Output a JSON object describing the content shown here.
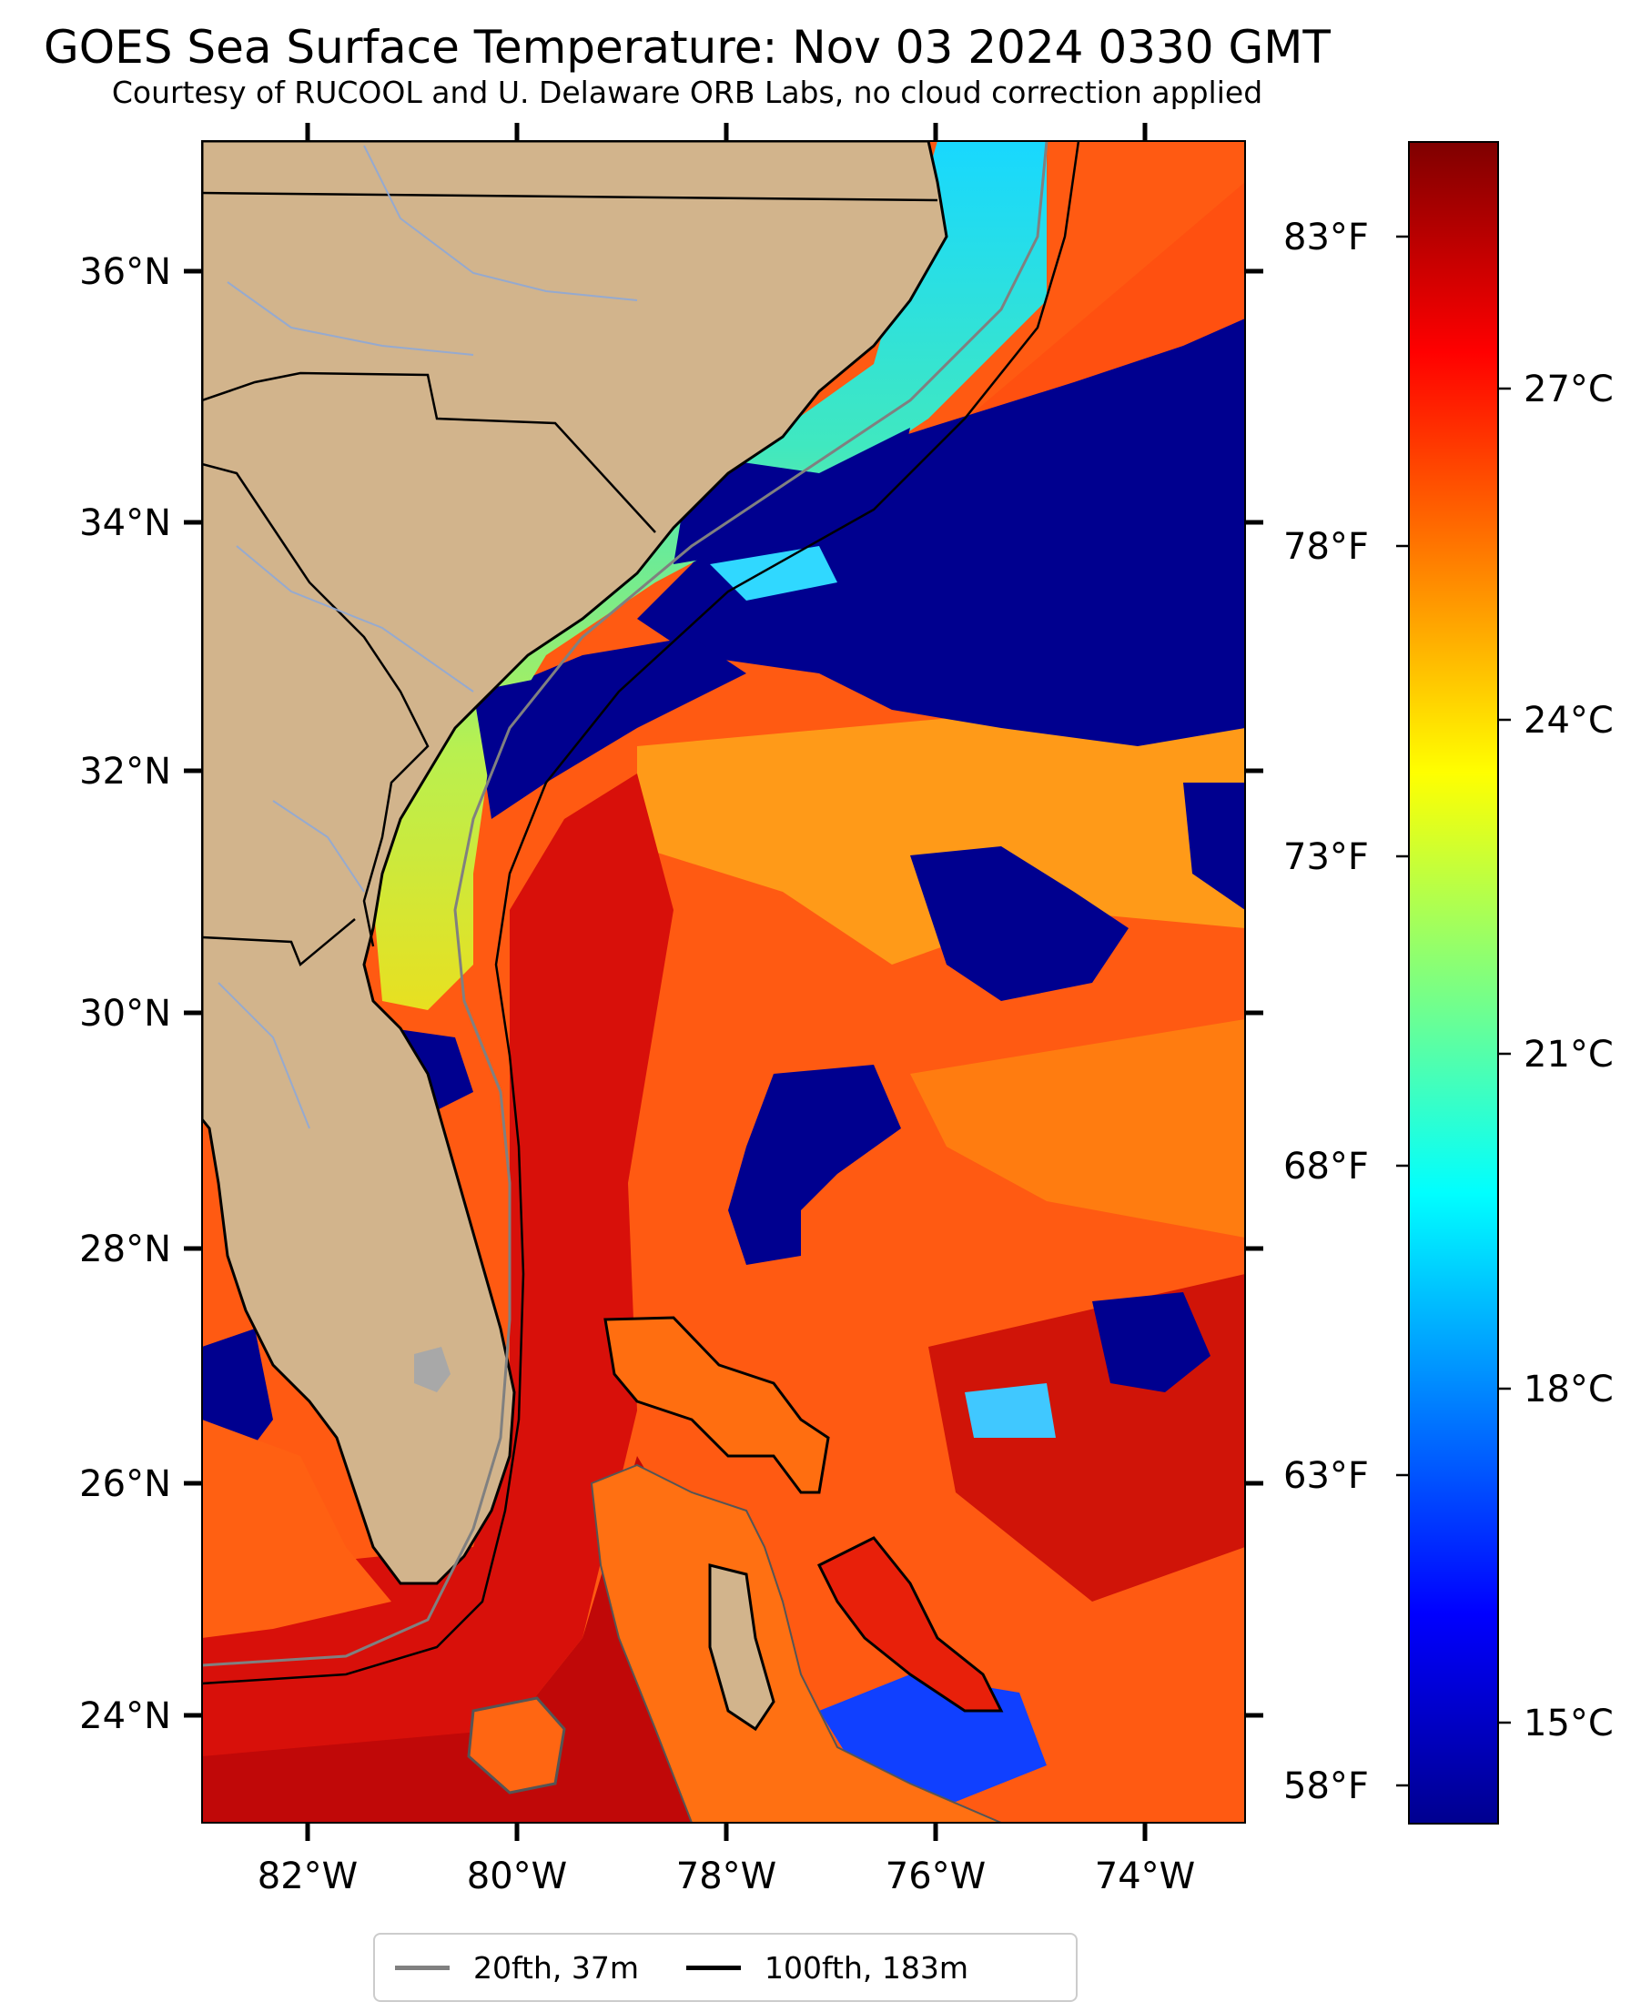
{
  "header": {
    "title": "GOES Sea Surface Temperature: Nov 03 2024 0330 GMT",
    "subtitle": "Courtesy of RUCOOL and U. Delaware ORB Labs, no cloud correction applied"
  },
  "map": {
    "extent": {
      "lon": [
        -83,
        -73
      ],
      "lat": [
        23.1,
        37.0
      ]
    },
    "lat_tick_labels": [
      "36°N",
      "34°N",
      "32°N",
      "30°N",
      "28°N",
      "26°N",
      "24°N"
    ],
    "lon_tick_labels": [
      "82°W",
      "80°W",
      "78°W",
      "76°W",
      "74°W"
    ],
    "fahrenheit_labels": [
      "83°F",
      "78°F",
      "73°F",
      "68°F",
      "63°F",
      "58°F"
    ],
    "colors": {
      "land": "#d2b48c",
      "gulf_stream": "#e41a0c",
      "warm_sargasso": "#ff5a12",
      "cloud_cold": "#00008f",
      "shelf_water": "#a8f060",
      "coastline": "#000000",
      "rivers": "#8fa8d6"
    }
  },
  "colorbar": {
    "celsius_labels": [
      "27°C",
      "24°C",
      "21°C",
      "18°C",
      "15°C"
    ],
    "colormap": "jet",
    "range_c": [
      13.6,
      29.2
    ]
  },
  "legend": {
    "items": [
      {
        "label": "20fth, 37m",
        "color": "#808080"
      },
      {
        "label": "100fth, 183m",
        "color": "#000000"
      }
    ]
  }
}
